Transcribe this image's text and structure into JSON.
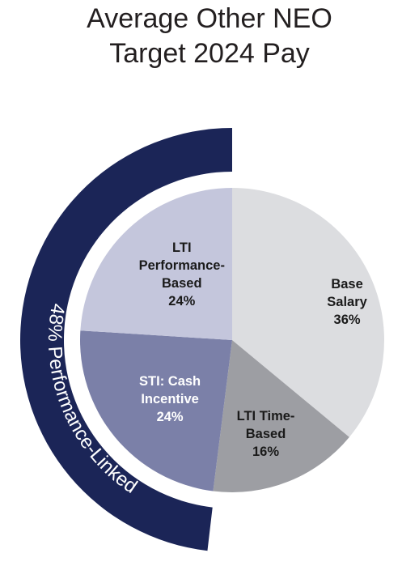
{
  "title_line1": "Average Other NEO",
  "title_line2": "Target 2024 Pay",
  "chart_data": {
    "type": "pie",
    "title": "Average Other NEO Target 2024 Pay",
    "slices": [
      {
        "label_lines": [
          "Base",
          "Salary",
          "36%"
        ],
        "value": 36,
        "color": "#dcdde0",
        "text_color": "#1a1a1a"
      },
      {
        "label_lines": [
          "LTI Time-",
          "Based",
          "16%"
        ],
        "value": 16,
        "color": "#9d9ea3",
        "text_color": "#1a1a1a"
      },
      {
        "label_lines": [
          "STI: Cash",
          "Incentive",
          "24%"
        ],
        "value": 24,
        "color": "#7b80a8",
        "text_color": "#ffffff"
      },
      {
        "label_lines": [
          "LTI",
          "Performance-",
          "Based",
          "24%"
        ],
        "value": 24,
        "color": "#c4c6dc",
        "text_color": "#1a1a1a"
      }
    ],
    "start_angle_deg": 0,
    "direction": "clockwise",
    "annotation": {
      "text": "48% Performance-Linked",
      "value": 48,
      "color": "#1b2557"
    }
  }
}
